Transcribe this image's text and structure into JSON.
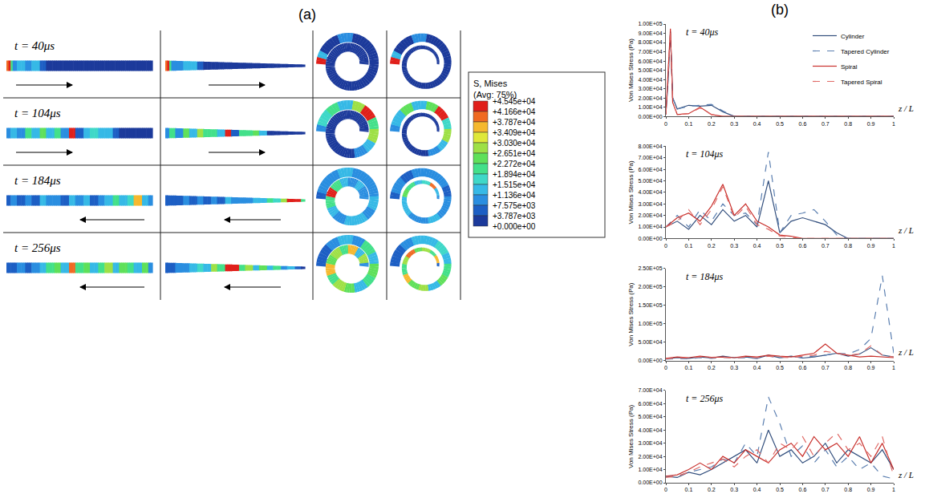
{
  "panel_labels": [
    "(a)",
    "(b)"
  ],
  "figure_a": {
    "times": [
      "t = 40μs",
      "t = 104μs",
      "t = 184μs",
      "t = 256μs"
    ],
    "wave_direction": [
      "right",
      "right",
      "left",
      "left"
    ],
    "colorbar": {
      "title": [
        "S, Mises",
        "(Avg: 75%)"
      ],
      "ticks": [
        {
          "value": 45450,
          "label": "+4.545e+04"
        },
        {
          "value": 41660,
          "label": "+4.166e+04"
        },
        {
          "value": 37870,
          "label": "+3.787e+04"
        },
        {
          "value": 34090,
          "label": "+3.409e+04"
        },
        {
          "value": 30300,
          "label": "+3.030e+04"
        },
        {
          "value": 26510,
          "label": "+2.651e+04"
        },
        {
          "value": 22720,
          "label": "+2.272e+04"
        },
        {
          "value": 18940,
          "label": "+1.894e+04"
        },
        {
          "value": 15150,
          "label": "+1.515e+04"
        },
        {
          "value": 11360,
          "label": "+1.136e+04"
        },
        {
          "value": 7575,
          "label": "+7.575e+03"
        },
        {
          "value": 3787,
          "label": "+3.787e+03"
        },
        {
          "value": 0,
          "label": "+0.000e+00"
        }
      ]
    }
  },
  "chart_data": [
    {
      "type": "line",
      "title": "t = 40μs",
      "x_label": "z / L",
      "y_label": "Von Mises Stress (Pa)",
      "x": [
        0,
        0.01,
        0.02,
        0.03,
        0.05,
        0.1,
        0.15,
        0.2,
        0.25,
        0.3,
        0.35,
        0.4,
        0.5,
        0.6,
        0.7,
        0.8,
        0.9,
        1
      ],
      "series": [
        {
          "name": "Cylinder",
          "color": "#34507e",
          "line_style": "solid",
          "values": [
            2000,
            40000,
            92000,
            20000,
            8000,
            12000,
            11000,
            12000,
            5000,
            0,
            0,
            0,
            0,
            0,
            0,
            0,
            0,
            0
          ]
        },
        {
          "name": "Tapered Cylinder",
          "color": "#5b7fb0",
          "line_style": "dashed",
          "values": [
            2000,
            40000,
            90000,
            20000,
            8000,
            11000,
            12000,
            13000,
            6000,
            0,
            0,
            0,
            0,
            0,
            0,
            0,
            0,
            0
          ]
        },
        {
          "name": "Spiral",
          "color": "#c8302c",
          "line_style": "solid",
          "values": [
            2000,
            50000,
            95000,
            15000,
            2000,
            3000,
            10000,
            2000,
            0,
            0,
            0,
            0,
            0,
            0,
            0,
            0,
            0,
            0
          ]
        },
        {
          "name": "Tapered Spiral",
          "color": "#e06a66",
          "line_style": "dashed",
          "values": [
            2000,
            50000,
            93000,
            15000,
            2000,
            3000,
            9000,
            2000,
            0,
            0,
            0,
            0,
            0,
            0,
            0,
            0,
            0,
            0
          ]
        }
      ],
      "xlim": [
        0,
        1
      ],
      "xticks": [
        0,
        0.1,
        0.2,
        0.3,
        0.4,
        0.5,
        0.6,
        0.7,
        0.8,
        0.9,
        1
      ],
      "ylim": [
        0,
        100000
      ],
      "yticks": [
        {
          "value": 0,
          "label": "0.00E+00"
        },
        {
          "value": 10000,
          "label": "1.00E+04"
        },
        {
          "value": 20000,
          "label": "2.00E+04"
        },
        {
          "value": 30000,
          "label": "3.00E+04"
        },
        {
          "value": 40000,
          "label": "4.00E+04"
        },
        {
          "value": 50000,
          "label": "5.00E+04"
        },
        {
          "value": 60000,
          "label": "6.00E+04"
        },
        {
          "value": 70000,
          "label": "7.00E+04"
        },
        {
          "value": 80000,
          "label": "8.00E+04"
        },
        {
          "value": 90000,
          "label": "9.00E+04"
        },
        {
          "value": 100000,
          "label": "1.00E+05"
        }
      ],
      "grid": false,
      "legend": "upper right"
    },
    {
      "type": "line",
      "title": "t = 104μs",
      "x_label": "z / L",
      "y_label": "Von Mises Stress (Pa)",
      "x": [
        0,
        0.05,
        0.1,
        0.15,
        0.2,
        0.25,
        0.3,
        0.35,
        0.4,
        0.45,
        0.5,
        0.55,
        0.6,
        0.65,
        0.7,
        0.75,
        0.8,
        0.85,
        0.9,
        0.95,
        1
      ],
      "series": [
        {
          "name": "Cylinder",
          "color": "#34507e",
          "line_style": "solid",
          "values": [
            10000,
            15000,
            8000,
            20000,
            12000,
            25000,
            15000,
            20000,
            10000,
            50000,
            5000,
            15000,
            18000,
            15000,
            12000,
            5000,
            0,
            0,
            0,
            0,
            0
          ]
        },
        {
          "name": "Tapered Cylinder",
          "color": "#5b7fb0",
          "line_style": "dashed",
          "values": [
            10000,
            20000,
            10000,
            25000,
            15000,
            30000,
            20000,
            22000,
            12000,
            75000,
            5000,
            20000,
            22000,
            25000,
            15000,
            3000,
            0,
            0,
            0,
            0,
            0
          ]
        },
        {
          "name": "Spiral",
          "color": "#c8302c",
          "line_style": "solid",
          "values": [
            10000,
            18000,
            22000,
            15000,
            28000,
            47000,
            20000,
            30000,
            15000,
            10000,
            3000,
            2000,
            0,
            0,
            0,
            0,
            0,
            0,
            0,
            0,
            0
          ]
        },
        {
          "name": "Tapered Spiral",
          "color": "#e06a66",
          "line_style": "dashed",
          "values": [
            10000,
            15000,
            25000,
            12000,
            25000,
            45000,
            18000,
            28000,
            12000,
            8000,
            2000,
            1000,
            0,
            0,
            0,
            0,
            0,
            0,
            0,
            0,
            0
          ]
        }
      ],
      "xlim": [
        0,
        1
      ],
      "xticks": [
        0,
        0.1,
        0.2,
        0.3,
        0.4,
        0.5,
        0.6,
        0.7,
        0.8,
        0.9,
        1
      ],
      "ylim": [
        0,
        80000
      ],
      "yticks": [
        {
          "value": 0,
          "label": "0.00E+00"
        },
        {
          "value": 10000,
          "label": "1.00E+04"
        },
        {
          "value": 20000,
          "label": "2.00E+04"
        },
        {
          "value": 30000,
          "label": "3.00E+04"
        },
        {
          "value": 40000,
          "label": "4.00E+04"
        },
        {
          "value": 50000,
          "label": "5.00E+04"
        },
        {
          "value": 60000,
          "label": "6.00E+04"
        },
        {
          "value": 70000,
          "label": "7.00E+04"
        },
        {
          "value": 80000,
          "label": "8.00E+04"
        }
      ],
      "grid": false
    },
    {
      "type": "line",
      "title": "t = 184μs",
      "x_label": "z / L",
      "y_label": "Von Mises Stress (Pa)",
      "x": [
        0,
        0.05,
        0.1,
        0.15,
        0.2,
        0.25,
        0.3,
        0.35,
        0.4,
        0.45,
        0.5,
        0.55,
        0.6,
        0.65,
        0.7,
        0.75,
        0.8,
        0.85,
        0.9,
        0.95,
        1
      ],
      "series": [
        {
          "name": "Cylinder",
          "color": "#34507e",
          "line_style": "solid",
          "values": [
            5000,
            8000,
            6000,
            10000,
            7000,
            12000,
            8000,
            10000,
            6000,
            15000,
            8000,
            12000,
            7000,
            10000,
            15000,
            20000,
            12000,
            18000,
            35000,
            15000,
            10000
          ]
        },
        {
          "name": "Tapered Cylinder",
          "color": "#5b7fb0",
          "line_style": "dashed",
          "values": [
            4000,
            6000,
            5000,
            8000,
            6000,
            9000,
            7000,
            8000,
            6000,
            12000,
            8000,
            10000,
            9000,
            12000,
            15000,
            20000,
            18000,
            30000,
            60000,
            230000,
            20000
          ]
        },
        {
          "name": "Spiral",
          "color": "#c8302c",
          "line_style": "solid",
          "values": [
            6000,
            10000,
            8000,
            12000,
            9000,
            10000,
            8000,
            12000,
            10000,
            15000,
            12000,
            10000,
            15000,
            20000,
            45000,
            20000,
            15000,
            10000,
            12000,
            10000,
            8000
          ]
        },
        {
          "name": "Tapered Spiral",
          "color": "#e06a66",
          "line_style": "dashed",
          "values": [
            5000,
            8000,
            7000,
            10000,
            8000,
            9000,
            7000,
            10000,
            8000,
            12000,
            10000,
            8000,
            12000,
            15000,
            25000,
            20000,
            15000,
            18000,
            40000,
            15000,
            10000
          ]
        }
      ],
      "xlim": [
        0,
        1
      ],
      "xticks": [
        0,
        0.1,
        0.2,
        0.3,
        0.4,
        0.5,
        0.6,
        0.7,
        0.8,
        0.9,
        1
      ],
      "ylim": [
        0,
        250000
      ],
      "yticks": [
        {
          "value": 0,
          "label": "0.00E+00"
        },
        {
          "value": 50000,
          "label": "5.00E+04"
        },
        {
          "value": 100000,
          "label": "1.00E+05"
        },
        {
          "value": 150000,
          "label": "1.50E+05"
        },
        {
          "value": 200000,
          "label": "2.00E+05"
        },
        {
          "value": 250000,
          "label": "2.50E+05"
        }
      ],
      "grid": false
    },
    {
      "type": "line",
      "title": "t = 256μs",
      "x_label": "z / L",
      "y_label": "Von Mises Stress (Pa)",
      "x": [
        0,
        0.05,
        0.1,
        0.15,
        0.2,
        0.25,
        0.3,
        0.35,
        0.4,
        0.45,
        0.5,
        0.55,
        0.6,
        0.65,
        0.7,
        0.75,
        0.8,
        0.85,
        0.9,
        0.95,
        1
      ],
      "series": [
        {
          "name": "Cylinder",
          "color": "#34507e",
          "line_style": "solid",
          "values": [
            5000,
            4000,
            8000,
            6000,
            10000,
            15000,
            20000,
            25000,
            15000,
            40000,
            20000,
            25000,
            15000,
            20000,
            30000,
            15000,
            25000,
            20000,
            15000,
            25000,
            10000
          ]
        },
        {
          "name": "Tapered Cylinder",
          "color": "#5b7fb0",
          "line_style": "dashed",
          "values": [
            5000,
            5000,
            8000,
            10000,
            12000,
            18000,
            15000,
            30000,
            20000,
            65000,
            45000,
            20000,
            28000,
            15000,
            25000,
            12000,
            20000,
            10000,
            15000,
            5000,
            3000
          ]
        },
        {
          "name": "Spiral",
          "color": "#c8302c",
          "line_style": "solid",
          "values": [
            5000,
            6000,
            10000,
            15000,
            10000,
            20000,
            15000,
            25000,
            20000,
            15000,
            25000,
            30000,
            20000,
            35000,
            25000,
            30000,
            20000,
            35000,
            15000,
            30000,
            10000
          ]
        },
        {
          "name": "Tapered Spiral",
          "color": "#e06a66",
          "line_style": "dashed",
          "values": [
            4000,
            5000,
            8000,
            12000,
            15000,
            18000,
            12000,
            20000,
            25000,
            15000,
            30000,
            25000,
            35000,
            20000,
            30000,
            38000,
            25000,
            30000,
            20000,
            35000,
            5000
          ]
        }
      ],
      "xlim": [
        0,
        1
      ],
      "xticks": [
        0,
        0.1,
        0.2,
        0.3,
        0.4,
        0.5,
        0.6,
        0.7,
        0.8,
        0.9,
        1
      ],
      "ylim": [
        0,
        70000
      ],
      "yticks": [
        {
          "value": 0,
          "label": "0.00E+00"
        },
        {
          "value": 10000,
          "label": "1.00E+04"
        },
        {
          "value": 20000,
          "label": "2.00E+04"
        },
        {
          "value": 30000,
          "label": "3.00E+04"
        },
        {
          "value": 40000,
          "label": "4.00E+04"
        },
        {
          "value": 50000,
          "label": "5.00E+04"
        },
        {
          "value": 60000,
          "label": "6.00E+04"
        },
        {
          "value": 70000,
          "label": "7.00E+04"
        }
      ],
      "grid": false
    }
  ]
}
